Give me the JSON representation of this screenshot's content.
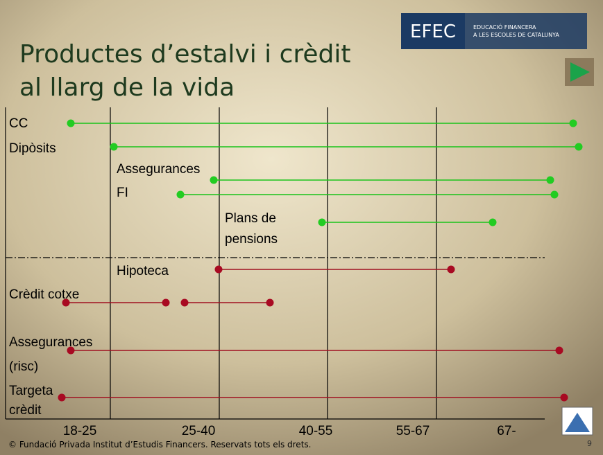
{
  "slide": {
    "title": [
      "Productes d’estalvi i crèdit",
      "al llarg de la vida"
    ],
    "logo": {
      "mark": "EFEC",
      "line1": "EDUCACIÓ FINANCERA",
      "line2": "A LES ESCOLES DE CATALUNYA"
    },
    "savings": [
      [
        "CC"
      ],
      [
        "Dipòsits"
      ],
      [
        "Assegurances"
      ],
      [
        "FI"
      ],
      [
        "Plans de",
        "pensions"
      ]
    ],
    "credit": [
      [
        "Hipoteca"
      ],
      [
        "Crèdit cotxe"
      ],
      [
        "Assegurances",
        "(risc)"
      ],
      [
        "Targeta",
        "crèdit"
      ]
    ],
    "ages": [
      "18-25",
      "25-40",
      "40-55",
      "55-67",
      "67-"
    ],
    "footer": "© Fundació Privada Institut d’Estudis Financers. Reservats tots els drets.",
    "page": "9"
  }
}
